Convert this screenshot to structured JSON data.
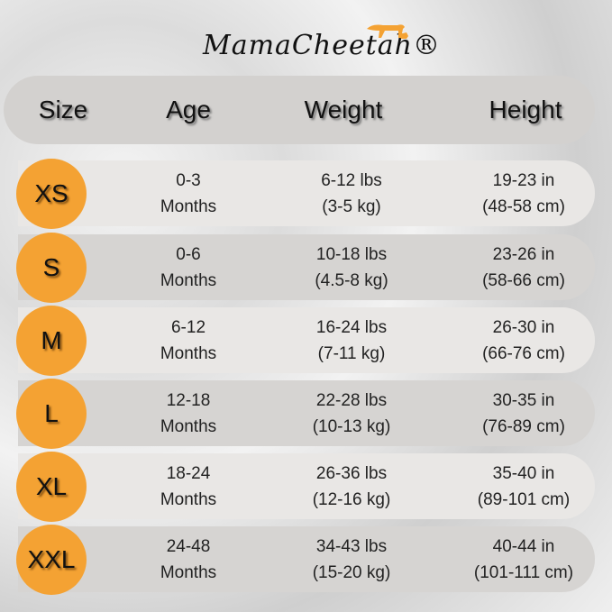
{
  "brand": {
    "logo_text": "MamaCheetah®",
    "accent": "#f4a233"
  },
  "header": {
    "size": "Size",
    "age": "Age",
    "weight": "Weight",
    "height": "Height"
  },
  "rows": [
    {
      "size": "XS",
      "age1": "0-3",
      "age2": "Months",
      "w1": "6-12 lbs",
      "w2": "(3-5 kg)",
      "h1": "19-23 in",
      "h2": "(48-58 cm)"
    },
    {
      "size": "S",
      "age1": "0-6",
      "age2": "Months",
      "w1": "10-18 lbs",
      "w2": "(4.5-8 kg)",
      "h1": "23-26 in",
      "h2": "(58-66 cm)"
    },
    {
      "size": "M",
      "age1": "6-12",
      "age2": "Months",
      "w1": "16-24 lbs",
      "w2": "(7-11 kg)",
      "h1": "26-30 in",
      "h2": "(66-76 cm)"
    },
    {
      "size": "L",
      "age1": "12-18",
      "age2": "Months",
      "w1": "22-28 lbs",
      "w2": "(10-13 kg)",
      "h1": "30-35 in",
      "h2": "(76-89 cm)"
    },
    {
      "size": "XL",
      "age1": "18-24",
      "age2": "Months",
      "w1": "26-36 lbs",
      "w2": "(12-16 kg)",
      "h1": "35-40 in",
      "h2": "(89-101 cm)"
    },
    {
      "size": "XXL",
      "age1": "24-48",
      "age2": "Months",
      "w1": "34-43 lbs",
      "w2": "(15-20 kg)",
      "h1": "40-44 in",
      "h2": "(101-111 cm)"
    }
  ]
}
